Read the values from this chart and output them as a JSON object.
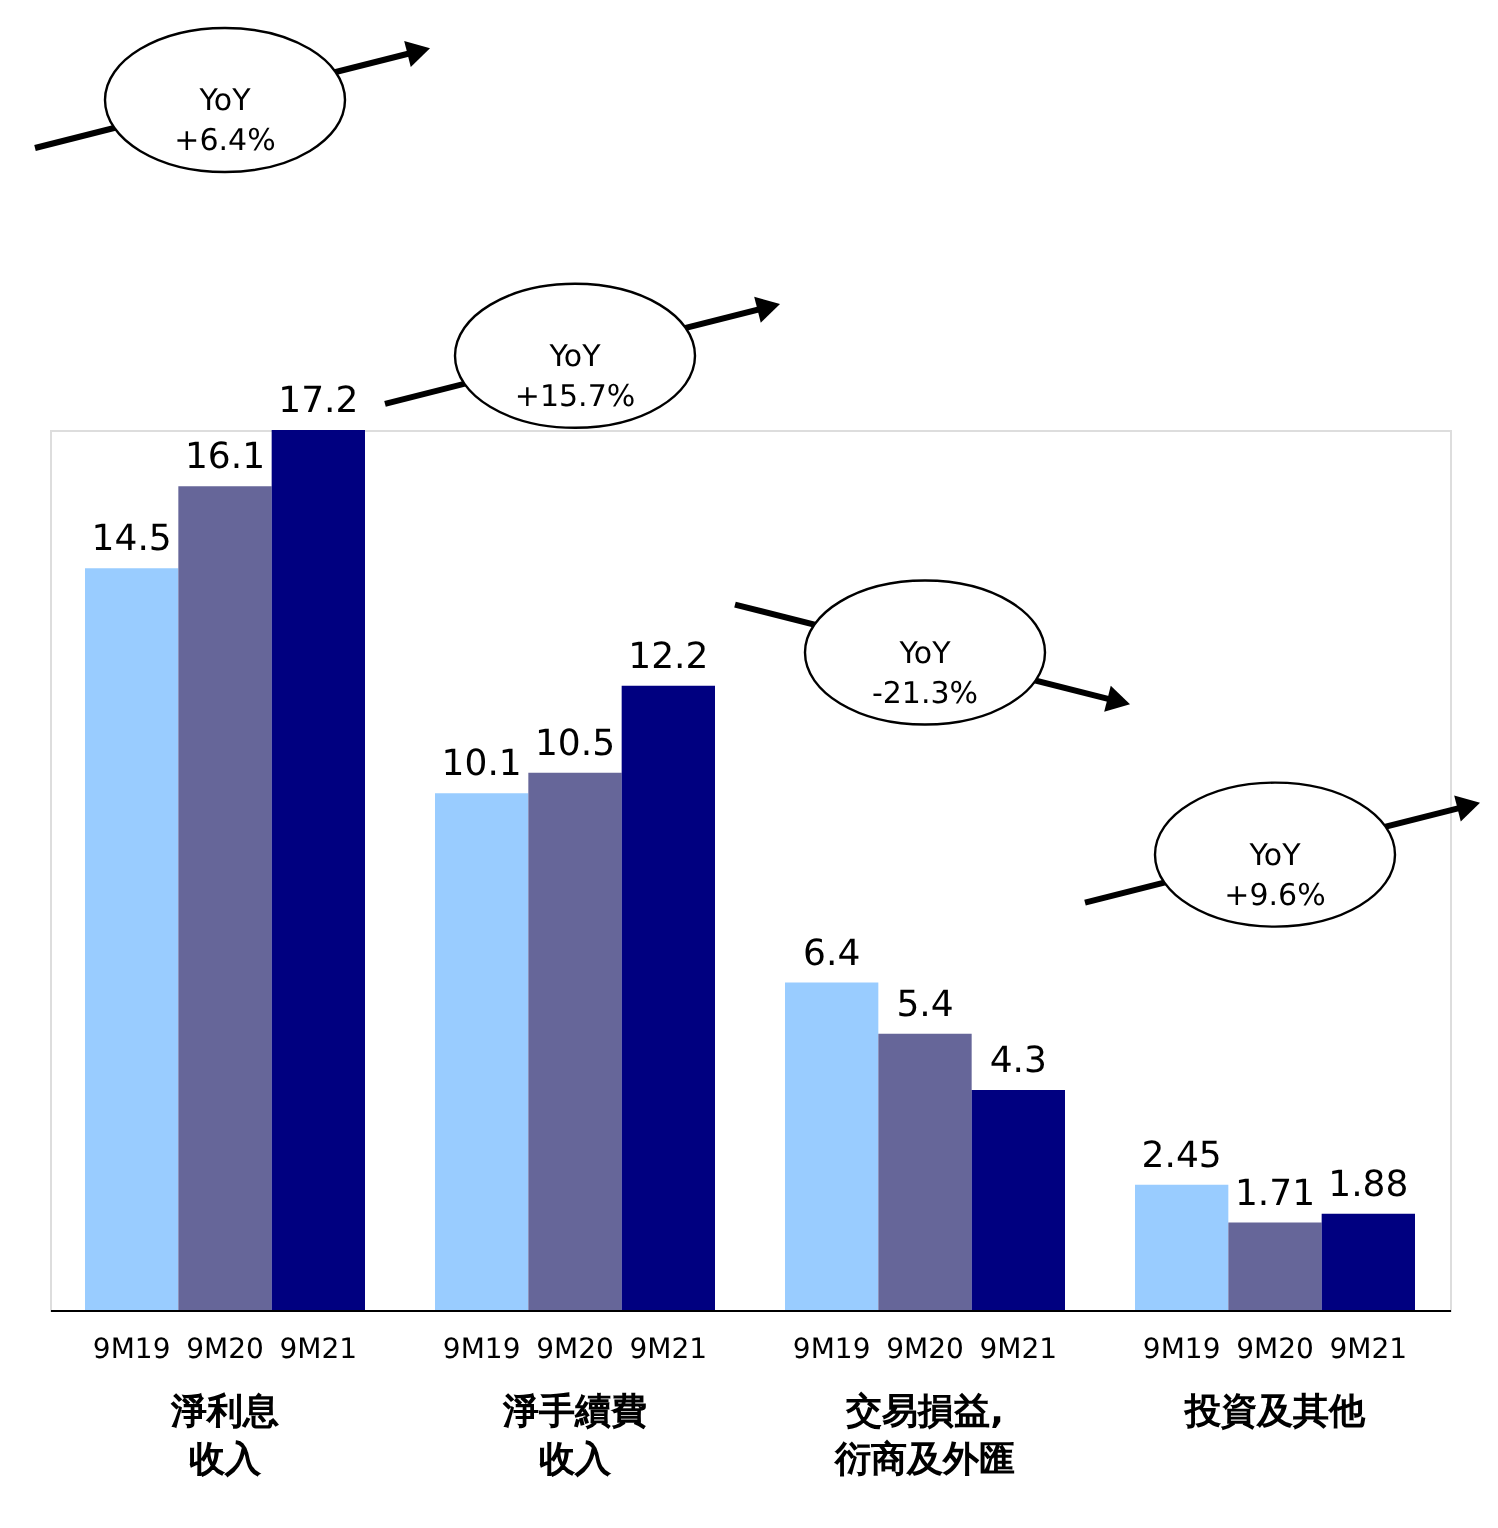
{
  "chart_data": {
    "type": "bar",
    "categories": [
      "淨利息收入",
      "淨手續費收入",
      "交易損益,衍商及外匯",
      "投資及其他"
    ],
    "series": [
      {
        "name": "9M19",
        "color": "#99ccff",
        "values": [
          14.5,
          10.1,
          6.4,
          2.45
        ]
      },
      {
        "name": "9M20",
        "color": "#666699",
        "values": [
          16.1,
          10.5,
          5.4,
          1.71
        ]
      },
      {
        "name": "9M21",
        "color": "#000080",
        "values": [
          17.2,
          12.2,
          4.3,
          1.88
        ]
      }
    ],
    "data_labels": true,
    "annotations": [
      "YoY\n+6.4%",
      "YoY\n+15.7%",
      "YoY\n-21.3%",
      "YoY\n+9.6%"
    ]
  }
}
